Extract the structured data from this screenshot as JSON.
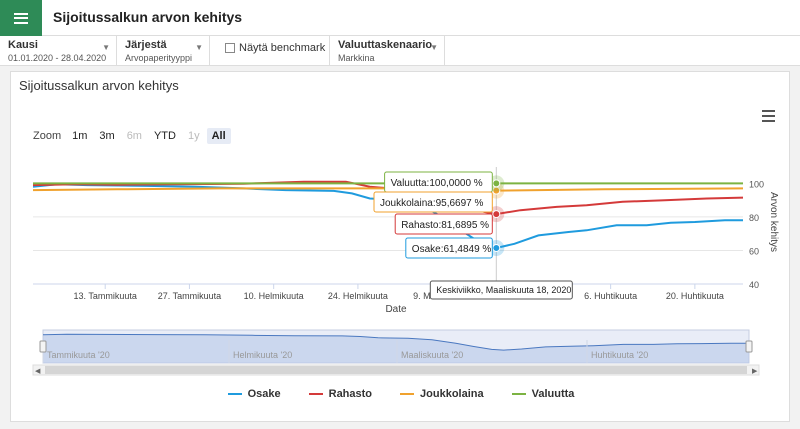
{
  "app": {
    "title": "Sijoitussalkun arvon kehitys",
    "menu_icon": "hamburger-icon",
    "accent": "#2e8b57"
  },
  "filters": {
    "kausi": {
      "label": "Kausi",
      "value": "01.01.2020 - 28.04.2020"
    },
    "jarjesta": {
      "label": "Järjestä",
      "value": "Arvopaperityyppi"
    },
    "benchmark": {
      "label": "Näytä benchmark",
      "checked": false
    },
    "skenaario": {
      "label": "Valuuttaskenaario",
      "value": "Markkina"
    }
  },
  "panel": {
    "title": "Sijoitussalkun arvon kehitys",
    "zoom_label": "Zoom",
    "zoom_buttons": [
      {
        "label": "1m",
        "state": "normal"
      },
      {
        "label": "3m",
        "state": "normal"
      },
      {
        "label": "6m",
        "state": "disabled"
      },
      {
        "label": "YTD",
        "state": "normal"
      },
      {
        "label": "1y",
        "state": "disabled"
      },
      {
        "label": "All",
        "state": "active"
      }
    ]
  },
  "chart_data": {
    "type": "line",
    "xlabel": "Date",
    "ylabel": "Arvon kehitys",
    "ylim": [
      40,
      105
    ],
    "yticks": [
      40,
      60,
      80,
      100
    ],
    "x_range": [
      "2020-01-01",
      "2020-04-28"
    ],
    "xticks": [
      {
        "date": "2020-01-13",
        "label": "13. Tammikuuta"
      },
      {
        "date": "2020-01-27",
        "label": "27. Tammikuuta"
      },
      {
        "date": "2020-02-10",
        "label": "10. Helmikuuta"
      },
      {
        "date": "2020-02-24",
        "label": "24. Helmikuuta"
      },
      {
        "date": "2020-03-09",
        "label": "9. Maaliskuuta"
      },
      {
        "date": "2020-04-06",
        "label": "6. Huhtikuuta"
      },
      {
        "date": "2020-04-20",
        "label": "20. Huhtikuuta"
      }
    ],
    "series": [
      {
        "name": "Osake",
        "color": "#1f9bde",
        "points": [
          [
            "2020-01-01",
            98
          ],
          [
            "2020-01-05",
            99.5
          ],
          [
            "2020-01-10",
            99
          ],
          [
            "2020-01-20",
            98.5
          ],
          [
            "2020-01-28",
            98
          ],
          [
            "2020-02-05",
            97
          ],
          [
            "2020-02-12",
            96
          ],
          [
            "2020-02-20",
            95.5
          ],
          [
            "2020-02-23",
            94
          ],
          [
            "2020-02-26",
            91
          ],
          [
            "2020-03-02",
            90
          ],
          [
            "2020-03-06",
            86
          ],
          [
            "2020-03-10",
            78
          ],
          [
            "2020-03-13",
            70
          ],
          [
            "2020-03-16",
            63
          ],
          [
            "2020-03-18",
            61.48
          ],
          [
            "2020-03-21",
            64
          ],
          [
            "2020-03-25",
            69
          ],
          [
            "2020-03-30",
            71
          ],
          [
            "2020-04-02",
            72
          ],
          [
            "2020-04-07",
            75
          ],
          [
            "2020-04-12",
            75
          ],
          [
            "2020-04-16",
            76.5
          ],
          [
            "2020-04-20",
            77
          ],
          [
            "2020-04-25",
            78
          ],
          [
            "2020-04-28",
            78
          ]
        ]
      },
      {
        "name": "Rahasto",
        "color": "#d43a3a",
        "points": [
          [
            "2020-01-01",
            99
          ],
          [
            "2020-01-08",
            99.5
          ],
          [
            "2020-01-15",
            99.2
          ],
          [
            "2020-01-25",
            99.5
          ],
          [
            "2020-02-05",
            99.8
          ],
          [
            "2020-02-15",
            101
          ],
          [
            "2020-02-22",
            101
          ],
          [
            "2020-02-26",
            98
          ],
          [
            "2020-03-02",
            96.5
          ],
          [
            "2020-03-07",
            93
          ],
          [
            "2020-03-12",
            87
          ],
          [
            "2020-03-16",
            83
          ],
          [
            "2020-03-18",
            81.69
          ],
          [
            "2020-03-22",
            84
          ],
          [
            "2020-03-28",
            86
          ],
          [
            "2020-04-02",
            87
          ],
          [
            "2020-04-08",
            89
          ],
          [
            "2020-04-15",
            90
          ],
          [
            "2020-04-22",
            91
          ],
          [
            "2020-04-28",
            91.5
          ]
        ]
      },
      {
        "name": "Joukkolaina",
        "color": "#f0a22e",
        "points": [
          [
            "2020-01-01",
            96
          ],
          [
            "2020-01-15",
            96.5
          ],
          [
            "2020-02-01",
            97
          ],
          [
            "2020-02-20",
            97
          ],
          [
            "2020-03-01",
            97
          ],
          [
            "2020-03-10",
            96.5
          ],
          [
            "2020-03-18",
            95.67
          ],
          [
            "2020-03-25",
            96
          ],
          [
            "2020-04-05",
            96.5
          ],
          [
            "2020-04-28",
            97
          ]
        ]
      },
      {
        "name": "Valuutta",
        "color": "#7cb342",
        "points": [
          [
            "2020-01-01",
            100
          ],
          [
            "2020-04-28",
            100
          ]
        ]
      }
    ],
    "tooltip": {
      "date": "2020-03-18",
      "header": "Keskiviikko, Maaliskuuta 18, 2020",
      "values": [
        {
          "series": "Valuutta",
          "text": "Valuutta:100,0000 %"
        },
        {
          "series": "Joukkolaina",
          "text": "Joukkolaina:95,6697 %"
        },
        {
          "series": "Rahasto",
          "text": "Rahasto:81,6895 %"
        },
        {
          "series": "Osake",
          "text": "Osake:61,4849 %"
        }
      ]
    },
    "navigator": {
      "labels": [
        "Tammikuuta '20",
        "Helmikuuta '20",
        "Maaliskuuta '20",
        "Huhtikuuta '20"
      ]
    },
    "legend_placement": "bottom"
  }
}
